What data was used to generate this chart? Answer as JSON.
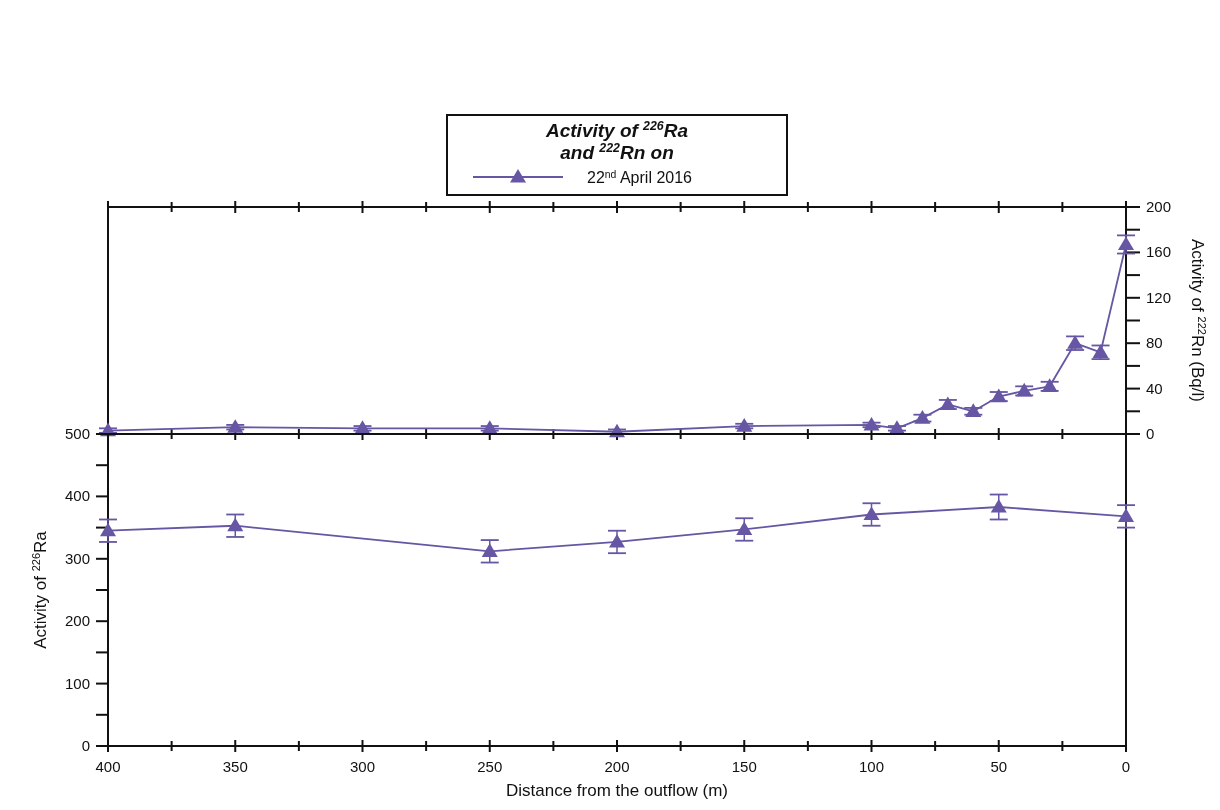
{
  "chart_data": [
    {
      "type": "line",
      "legend_title": "Activity of $^{226}$Ra and $^{222}$Rn on",
      "legend": "top",
      "y2label": "Activity of $^{222}$Rn (Bq/l)",
      "xlim": [
        400,
        0
      ],
      "xticks": [
        400,
        {
          "value": 375,
          "label": null
        },
        350,
        {
          "value": 325,
          "label": null
        },
        300,
        {
          "value": 275,
          "label": null
        },
        250,
        {
          "value": 225,
          "label": null
        },
        200,
        {
          "value": 175,
          "label": null
        },
        150,
        {
          "value": 125,
          "label": null
        },
        100,
        {
          "value": 75,
          "label": null
        },
        50,
        {
          "value": 25,
          "label": null
        },
        0
      ],
      "tick_labels": "y",
      "y2lim": [
        0,
        200
      ],
      "y2ticks": [
        0,
        {
          "value": 20,
          "label": null
        },
        40,
        {
          "value": 60,
          "label": null
        },
        80,
        {
          "value": 100,
          "label": null
        },
        120,
        {
          "value": 140,
          "label": null
        },
        160,
        {
          "value": 180,
          "label": null
        },
        200
      ],
      "marker": "triangle",
      "line_style": "solid",
      "series": [
        {
          "name": "22$^{nd}$ April 2016",
          "color": "#6656a3",
          "axis": "y2",
          "x": [
            400,
            350,
            300,
            250,
            200,
            150,
            100,
            90,
            80,
            70,
            60,
            50,
            40,
            30,
            20,
            10,
            0
          ],
          "values": [
            3,
            6,
            5,
            5,
            2,
            7,
            8,
            5,
            14,
            26,
            20,
            33,
            38,
            42,
            80,
            72,
            167
          ],
          "errors": [
            2,
            2,
            2,
            2,
            2,
            2,
            2,
            2,
            3,
            4,
            3,
            4,
            4,
            4,
            6,
            6,
            8
          ]
        }
      ]
    },
    {
      "type": "line",
      "xlabel": "Distance from the outflow (m)",
      "ylabel": "Activity of $^{226}$Ra",
      "xlim": [
        400,
        0
      ],
      "xticks": [
        400,
        {
          "value": 375,
          "label": null
        },
        350,
        {
          "value": 325,
          "label": null
        },
        300,
        {
          "value": 275,
          "label": null
        },
        250,
        {
          "value": 225,
          "label": null
        },
        200,
        {
          "value": 175,
          "label": null
        },
        150,
        {
          "value": 125,
          "label": null
        },
        100,
        {
          "value": 75,
          "label": null
        },
        50,
        {
          "value": 25,
          "label": null
        },
        0
      ],
      "ylim": [
        0,
        500
      ],
      "yticks": [
        0,
        {
          "value": 50,
          "label": null
        },
        100,
        {
          "value": 150,
          "label": null
        },
        200,
        {
          "value": 250,
          "label": null
        },
        300,
        {
          "value": 350,
          "label": null
        },
        400,
        {
          "value": 450,
          "label": null
        },
        500
      ],
      "marker": "triangle",
      "line_style": "solid",
      "series": [
        {
          "color": "#6656a3",
          "axis": "y",
          "x": [
            400,
            350,
            250,
            200,
            150,
            100,
            50,
            0
          ],
          "values": [
            345,
            353,
            312,
            327,
            347,
            371,
            383,
            368
          ],
          "errors": [
            18,
            18,
            18,
            18,
            18,
            18,
            20,
            18
          ]
        }
      ]
    }
  ]
}
